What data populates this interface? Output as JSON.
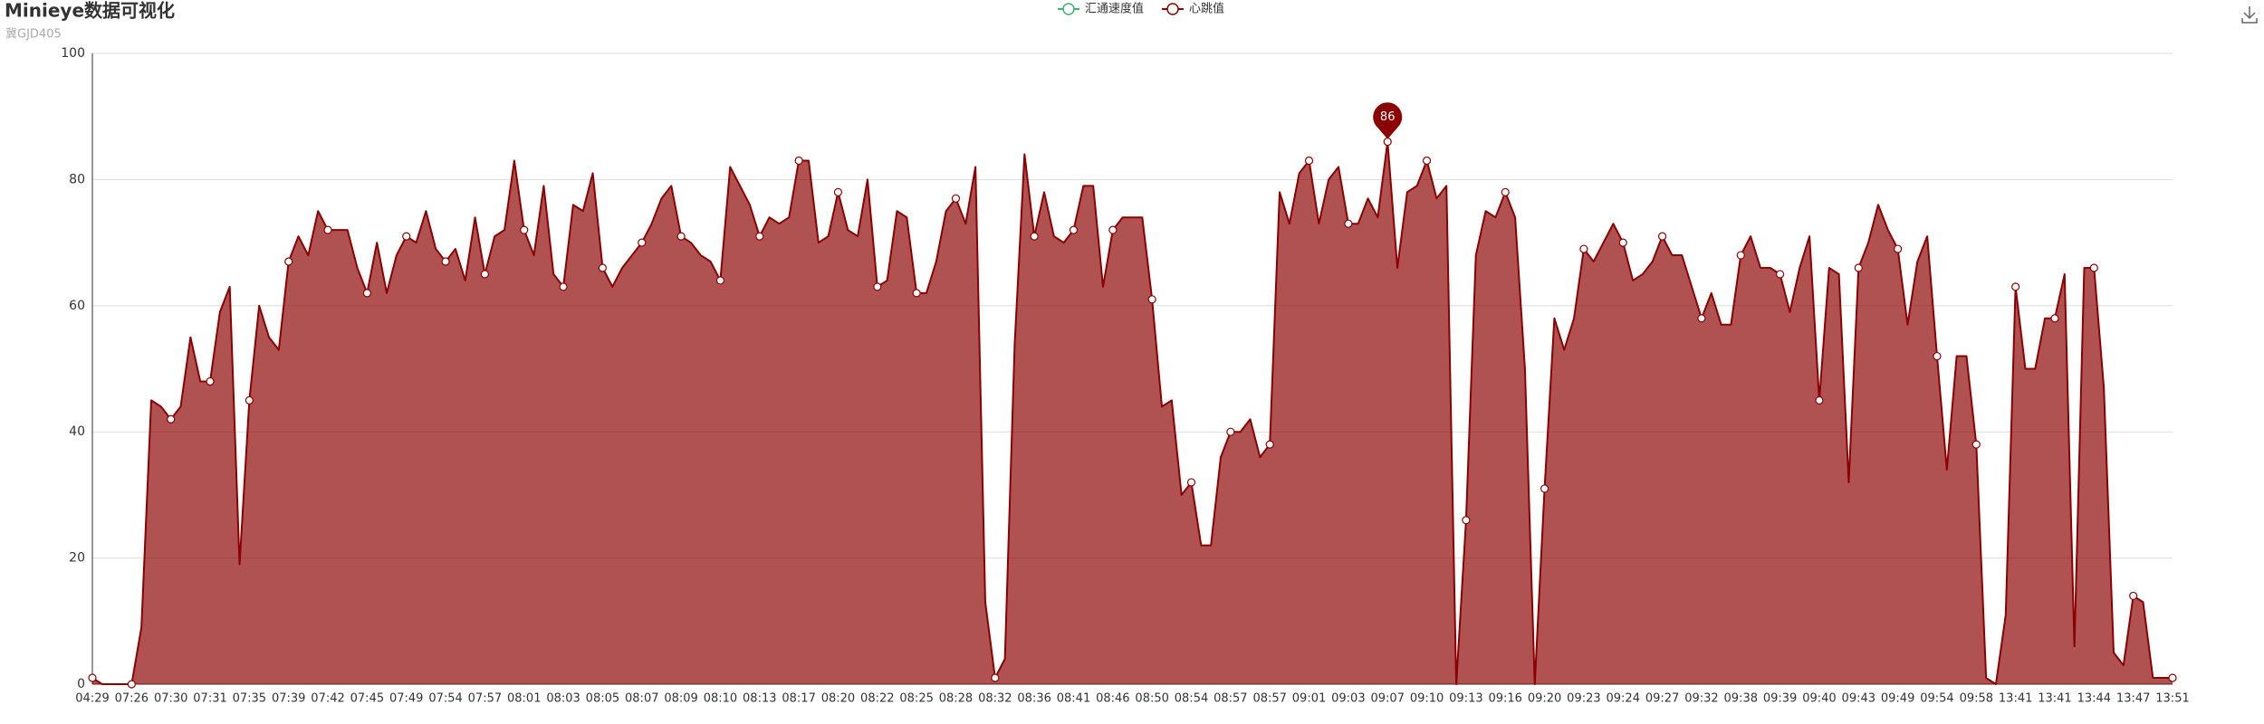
{
  "chart_data": {
    "type": "area",
    "title": "Minieye数据可视化",
    "subtitle": "冀GJD405",
    "categories": [
      "04:29",
      null,
      null,
      null,
      "07:26",
      null,
      null,
      null,
      "07:30",
      null,
      null,
      null,
      "07:31",
      null,
      null,
      null,
      "07:35",
      null,
      null,
      null,
      "07:39",
      null,
      null,
      null,
      "07:42",
      null,
      null,
      null,
      "07:45",
      null,
      null,
      null,
      "07:49",
      null,
      null,
      null,
      "07:54",
      null,
      null,
      null,
      "07:57",
      null,
      null,
      null,
      "08:01",
      null,
      null,
      null,
      "08:03",
      null,
      null,
      null,
      "08:05",
      null,
      null,
      null,
      "08:07",
      null,
      null,
      null,
      "08:09",
      null,
      null,
      null,
      "08:10",
      null,
      null,
      null,
      "08:13",
      null,
      null,
      null,
      "08:17",
      null,
      null,
      null,
      "08:20",
      null,
      null,
      null,
      "08:22",
      null,
      null,
      null,
      "08:25",
      null,
      null,
      null,
      "08:28",
      null,
      null,
      null,
      "08:32",
      null,
      null,
      null,
      "08:36",
      null,
      null,
      null,
      "08:41",
      null,
      null,
      null,
      "08:46",
      null,
      null,
      null,
      "08:50",
      null,
      null,
      null,
      "08:54",
      null,
      null,
      null,
      "08:57",
      null,
      null,
      null,
      "08:57",
      null,
      null,
      null,
      "09:01",
      null,
      null,
      null,
      "09:03",
      null,
      null,
      null,
      "09:07",
      null,
      null,
      null,
      "09:10",
      null,
      null,
      null,
      "09:13",
      null,
      null,
      null,
      "09:16",
      null,
      null,
      null,
      "09:20",
      null,
      null,
      null,
      "09:23",
      null,
      null,
      null,
      "09:24",
      null,
      null,
      null,
      "09:27",
      null,
      null,
      null,
      "09:32",
      null,
      null,
      null,
      "09:38",
      null,
      null,
      null,
      "09:39",
      null,
      null,
      null,
      "09:40",
      null,
      null,
      null,
      "09:43",
      null,
      null,
      null,
      "09:49",
      null,
      null,
      null,
      "09:54",
      null,
      null,
      null,
      "09:58",
      null,
      null,
      null,
      "13:41",
      null,
      null,
      null,
      "13:41",
      null,
      null,
      null,
      "13:44",
      null,
      null,
      null,
      "13:47",
      null,
      null,
      null,
      "13:51"
    ],
    "series": [
      {
        "name": "汇通速度值",
        "color": "#3cb371"
      },
      {
        "name": "心跳值",
        "color": "#8b0000",
        "values": [
          1,
          0,
          0,
          0,
          0,
          9,
          45,
          44,
          42,
          44,
          55,
          48,
          48,
          59,
          63,
          19,
          45,
          60,
          55,
          53,
          67,
          71,
          68,
          75,
          72,
          72,
          72,
          66,
          62,
          70,
          62,
          68,
          71,
          70,
          75,
          69,
          67,
          69,
          64,
          74,
          65,
          71,
          72,
          83,
          72,
          68,
          79,
          65,
          63,
          76,
          75,
          81,
          66,
          63,
          66,
          68,
          70,
          73,
          77,
          79,
          71,
          70,
          68,
          67,
          64,
          82,
          79,
          76,
          71,
          74,
          73,
          74,
          83,
          83,
          70,
          71,
          78,
          72,
          71,
          80,
          63,
          64,
          75,
          74,
          62,
          62,
          67,
          75,
          77,
          73,
          82,
          13,
          1,
          4,
          54,
          84,
          71,
          78,
          71,
          70,
          72,
          79,
          79,
          63,
          72,
          74,
          74,
          74,
          61,
          44,
          45,
          30,
          32,
          22,
          22,
          36,
          40,
          40,
          42,
          36,
          38,
          78,
          73,
          81,
          83,
          73,
          80,
          82,
          73,
          73,
          77,
          74,
          86,
          66,
          78,
          79,
          83,
          77,
          79,
          0,
          26,
          68,
          75,
          74,
          78,
          74,
          50,
          0,
          31,
          58,
          53,
          58,
          69,
          67,
          70,
          73,
          70,
          64,
          65,
          67,
          71,
          68,
          68,
          63,
          58,
          62,
          57,
          57,
          68,
          71,
          66,
          66,
          65,
          59,
          66,
          71,
          45,
          66,
          65,
          32,
          66,
          70,
          76,
          72,
          69,
          57,
          67,
          71,
          52,
          34,
          52,
          52,
          38,
          1,
          0,
          11,
          63,
          50,
          50,
          58,
          58,
          65,
          6,
          66,
          66,
          47,
          5,
          3,
          14,
          13,
          1,
          1,
          1
        ]
      }
    ],
    "ylim": [
      0,
      100
    ],
    "yticks": [
      0,
      20,
      40,
      60,
      80,
      100
    ],
    "grid": true
  }
}
